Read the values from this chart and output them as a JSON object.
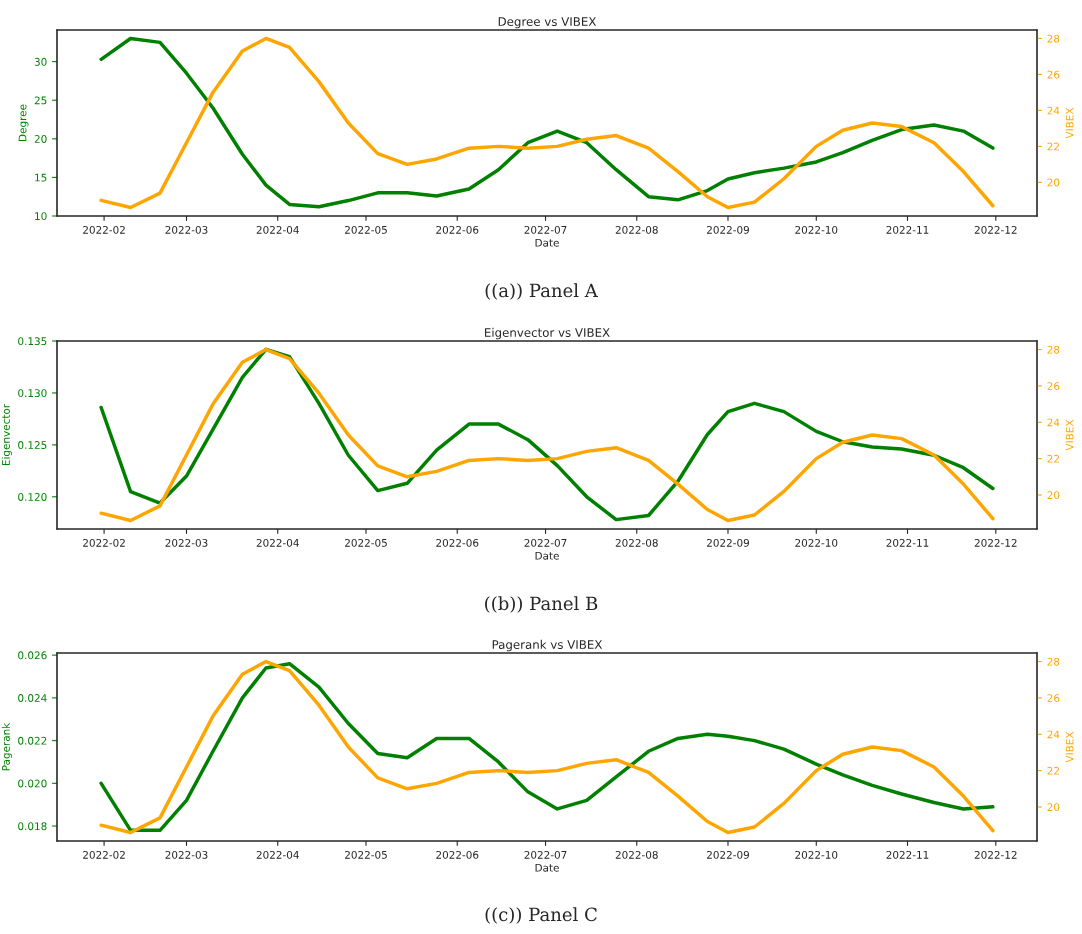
{
  "chart_data": [
    {
      "type": "line",
      "title": "Degree vs VIBEX",
      "xlabel": "Date",
      "ylabel": "Degree",
      "y2label": "VIBEX",
      "annotations": [
        "((a)) Panel A"
      ],
      "x": [
        "2022-01-31",
        "2022-02-10",
        "2022-02-20",
        "2022-03-01",
        "2022-03-10",
        "2022-03-20",
        "2022-03-28",
        "2022-04-05",
        "2022-04-15",
        "2022-04-25",
        "2022-05-05",
        "2022-05-15",
        "2022-05-25",
        "2022-06-05",
        "2022-06-15",
        "2022-06-25",
        "2022-07-05",
        "2022-07-15",
        "2022-07-25",
        "2022-08-05",
        "2022-08-15",
        "2022-08-25",
        "2022-09-01",
        "2022-09-10",
        "2022-09-20",
        "2022-10-01",
        "2022-10-10",
        "2022-10-20",
        "2022-10-30",
        "2022-11-10",
        "2022-11-20",
        "2022-11-30"
      ],
      "series": [
        {
          "color": "#008000",
          "values": [
            30.3,
            33.0,
            32.5,
            28.5,
            24.0,
            18.0,
            14.0,
            11.5,
            11.2,
            12.0,
            13.0,
            13.0,
            12.6,
            13.5,
            16.0,
            19.5,
            21.0,
            19.5,
            16.0,
            12.5,
            12.1,
            13.3,
            14.8,
            15.6,
            16.2,
            17.0,
            18.2,
            19.8,
            21.2,
            21.8,
            21.0,
            18.8
          ]
        },
        {
          "color": "#ffa500",
          "axis": "y2",
          "values": [
            19.0,
            18.6,
            19.4,
            22.2,
            25.0,
            27.3,
            28.0,
            27.5,
            25.6,
            23.3,
            21.6,
            21.0,
            21.3,
            21.9,
            22.0,
            21.9,
            22.0,
            22.4,
            22.6,
            21.9,
            20.6,
            19.2,
            18.6,
            18.9,
            20.2,
            22.0,
            22.9,
            23.3,
            23.1,
            22.2,
            20.6,
            18.7
          ]
        }
      ],
      "xlim": [
        "2022-01-16",
        "2022-12-15"
      ],
      "xticks": [
        {
          "value": "2022-02-01",
          "label": "2022-02"
        },
        {
          "value": "2022-03-01",
          "label": "2022-03"
        },
        {
          "value": "2022-04-01",
          "label": "2022-04"
        },
        {
          "value": "2022-05-01",
          "label": "2022-05"
        },
        {
          "value": "2022-06-01",
          "label": "2022-06"
        },
        {
          "value": "2022-07-01",
          "label": "2022-07"
        },
        {
          "value": "2022-08-01",
          "label": "2022-08"
        },
        {
          "value": "2022-09-01",
          "label": "2022-09"
        },
        {
          "value": "2022-10-01",
          "label": "2022-10"
        },
        {
          "value": "2022-11-01",
          "label": "2022-11"
        },
        {
          "value": "2022-12-01",
          "label": "2022-12"
        }
      ],
      "ylim": [
        10,
        34.1
      ],
      "yticks": [
        10,
        15,
        20,
        25,
        30
      ],
      "y2lim": [
        18.13,
        28.47
      ],
      "y2ticks": [
        20,
        22,
        24,
        26,
        28
      ],
      "grid": false
    },
    {
      "type": "line",
      "title": "Eigenvector vs VIBEX",
      "xlabel": "Date",
      "ylabel": "Eigenvector",
      "y2label": "VIBEX",
      "annotations": [
        "((b)) Panel B"
      ],
      "x": [
        "2022-01-31",
        "2022-02-10",
        "2022-02-20",
        "2022-03-01",
        "2022-03-10",
        "2022-03-20",
        "2022-03-28",
        "2022-04-05",
        "2022-04-15",
        "2022-04-25",
        "2022-05-05",
        "2022-05-15",
        "2022-05-25",
        "2022-06-05",
        "2022-06-15",
        "2022-06-25",
        "2022-07-05",
        "2022-07-15",
        "2022-07-25",
        "2022-08-05",
        "2022-08-15",
        "2022-08-25",
        "2022-09-01",
        "2022-09-10",
        "2022-09-20",
        "2022-10-01",
        "2022-10-10",
        "2022-10-20",
        "2022-10-30",
        "2022-11-10",
        "2022-11-20",
        "2022-11-30"
      ],
      "series": [
        {
          "color": "#008000",
          "values": [
            0.1286,
            0.1205,
            0.1194,
            0.122,
            0.1265,
            0.1315,
            0.1342,
            0.1335,
            0.129,
            0.124,
            0.1206,
            0.1213,
            0.1245,
            0.127,
            0.127,
            0.1255,
            0.123,
            0.12,
            0.1178,
            0.1182,
            0.1215,
            0.126,
            0.1282,
            0.129,
            0.1282,
            0.1263,
            0.1253,
            0.1248,
            0.1246,
            0.124,
            0.1228,
            0.1208
          ]
        },
        {
          "color": "#ffa500",
          "axis": "y2",
          "values": [
            19.0,
            18.6,
            19.4,
            22.2,
            25.0,
            27.3,
            28.0,
            27.5,
            25.6,
            23.3,
            21.6,
            21.0,
            21.3,
            21.9,
            22.0,
            21.9,
            22.0,
            22.4,
            22.6,
            21.9,
            20.6,
            19.2,
            18.6,
            18.9,
            20.2,
            22.0,
            22.9,
            23.3,
            23.1,
            22.2,
            20.6,
            18.7
          ]
        }
      ],
      "xlim": [
        "2022-01-16",
        "2022-12-15"
      ],
      "xticks": [
        {
          "value": "2022-02-01",
          "label": "2022-02"
        },
        {
          "value": "2022-03-01",
          "label": "2022-03"
        },
        {
          "value": "2022-04-01",
          "label": "2022-04"
        },
        {
          "value": "2022-05-01",
          "label": "2022-05"
        },
        {
          "value": "2022-06-01",
          "label": "2022-06"
        },
        {
          "value": "2022-07-01",
          "label": "2022-07"
        },
        {
          "value": "2022-08-01",
          "label": "2022-08"
        },
        {
          "value": "2022-09-01",
          "label": "2022-09"
        },
        {
          "value": "2022-10-01",
          "label": "2022-10"
        },
        {
          "value": "2022-11-01",
          "label": "2022-11"
        },
        {
          "value": "2022-12-01",
          "label": "2022-12"
        }
      ],
      "ylim": [
        0.1169,
        0.135
      ],
      "yticks": [
        {
          "value": 0.12,
          "label": "0.120"
        },
        0.125,
        {
          "value": 0.13,
          "label": "0.130"
        },
        0.135
      ],
      "y2lim": [
        18.13,
        28.47
      ],
      "y2ticks": [
        20,
        22,
        24,
        26,
        28
      ],
      "grid": false
    },
    {
      "type": "line",
      "title": "Pagerank vs VIBEX",
      "xlabel": "Date",
      "ylabel": "Pagerank",
      "y2label": "VIBEX",
      "annotations": [
        "((c)) Panel C"
      ],
      "x": [
        "2022-01-31",
        "2022-02-10",
        "2022-02-20",
        "2022-03-01",
        "2022-03-10",
        "2022-03-20",
        "2022-03-28",
        "2022-04-05",
        "2022-04-15",
        "2022-04-25",
        "2022-05-05",
        "2022-05-15",
        "2022-05-25",
        "2022-06-05",
        "2022-06-15",
        "2022-06-25",
        "2022-07-05",
        "2022-07-15",
        "2022-07-25",
        "2022-08-05",
        "2022-08-15",
        "2022-08-25",
        "2022-09-01",
        "2022-09-10",
        "2022-09-20",
        "2022-10-01",
        "2022-10-10",
        "2022-10-20",
        "2022-10-30",
        "2022-11-10",
        "2022-11-20",
        "2022-11-30"
      ],
      "series": [
        {
          "color": "#008000",
          "values": [
            0.02,
            0.0178,
            0.0178,
            0.0192,
            0.0215,
            0.024,
            0.0254,
            0.0256,
            0.0245,
            0.0228,
            0.0214,
            0.0212,
            0.0221,
            0.0221,
            0.021,
            0.0196,
            0.0188,
            0.0192,
            0.0203,
            0.0215,
            0.0221,
            0.0223,
            0.0222,
            0.022,
            0.0216,
            0.0209,
            0.0204,
            0.0199,
            0.0195,
            0.0191,
            0.0188,
            0.0189
          ]
        },
        {
          "color": "#ffa500",
          "axis": "y2",
          "values": [
            19.0,
            18.6,
            19.4,
            22.2,
            25.0,
            27.3,
            28.0,
            27.5,
            25.6,
            23.3,
            21.6,
            21.0,
            21.3,
            21.9,
            22.0,
            21.9,
            22.0,
            22.4,
            22.6,
            21.9,
            20.6,
            19.2,
            18.6,
            18.9,
            20.2,
            22.0,
            22.9,
            23.3,
            23.1,
            22.2,
            20.6,
            18.7
          ]
        }
      ],
      "xlim": [
        "2022-01-16",
        "2022-12-15"
      ],
      "xticks": [
        {
          "value": "2022-02-01",
          "label": "2022-02"
        },
        {
          "value": "2022-03-01",
          "label": "2022-03"
        },
        {
          "value": "2022-04-01",
          "label": "2022-04"
        },
        {
          "value": "2022-05-01",
          "label": "2022-05"
        },
        {
          "value": "2022-06-01",
          "label": "2022-06"
        },
        {
          "value": "2022-07-01",
          "label": "2022-07"
        },
        {
          "value": "2022-08-01",
          "label": "2022-08"
        },
        {
          "value": "2022-09-01",
          "label": "2022-09"
        },
        {
          "value": "2022-10-01",
          "label": "2022-10"
        },
        {
          "value": "2022-11-01",
          "label": "2022-11"
        },
        {
          "value": "2022-12-01",
          "label": "2022-12"
        }
      ],
      "ylim": [
        0.0173,
        0.0261
      ],
      "yticks": [
        0.018,
        {
          "value": 0.02,
          "label": "0.020"
        },
        0.022,
        0.024,
        0.026
      ],
      "y2lim": [
        18.13,
        28.47
      ],
      "y2ticks": [
        20,
        22,
        24,
        26,
        28
      ],
      "grid": false
    }
  ]
}
